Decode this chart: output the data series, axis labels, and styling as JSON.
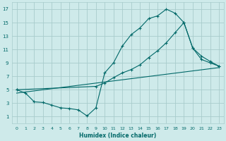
{
  "xlabel": "Humidex (Indice chaleur)",
  "background_color": "#ceeaea",
  "grid_color": "#a8cccc",
  "line_color": "#006868",
  "xlim": [
    -0.5,
    23.5
  ],
  "ylim": [
    0,
    18
  ],
  "xticks": [
    0,
    1,
    2,
    3,
    4,
    5,
    6,
    7,
    8,
    9,
    10,
    11,
    12,
    13,
    14,
    15,
    16,
    17,
    18,
    19,
    20,
    21,
    22,
    23
  ],
  "yticks": [
    1,
    3,
    5,
    7,
    9,
    11,
    13,
    15,
    17
  ],
  "line1_x": [
    0,
    1,
    2,
    3,
    4,
    5,
    6,
    7,
    8,
    9,
    10,
    11,
    12,
    13,
    14,
    15,
    16,
    17,
    18,
    19,
    20,
    21,
    22,
    23
  ],
  "line1_y": [
    5,
    4.5,
    3.2,
    3.1,
    2.7,
    2.3,
    2.2,
    2.0,
    1.1,
    2.3,
    7.5,
    9.0,
    11.5,
    13.2,
    14.2,
    15.6,
    16.0,
    17.0,
    16.4,
    15.0,
    11.2,
    9.5,
    9.0,
    8.5
  ],
  "line2_x": [
    0,
    9,
    10,
    11,
    12,
    13,
    14,
    15,
    16,
    17,
    18,
    19,
    20,
    21,
    22,
    23
  ],
  "line2_y": [
    5,
    5.5,
    6.0,
    6.8,
    7.5,
    8.0,
    8.7,
    9.8,
    10.8,
    12.0,
    13.5,
    15.0,
    11.2,
    10.0,
    9.2,
    8.5
  ],
  "line3_x": [
    0,
    23
  ],
  "line3_y": [
    4.5,
    8.3
  ],
  "markersize": 2.5
}
